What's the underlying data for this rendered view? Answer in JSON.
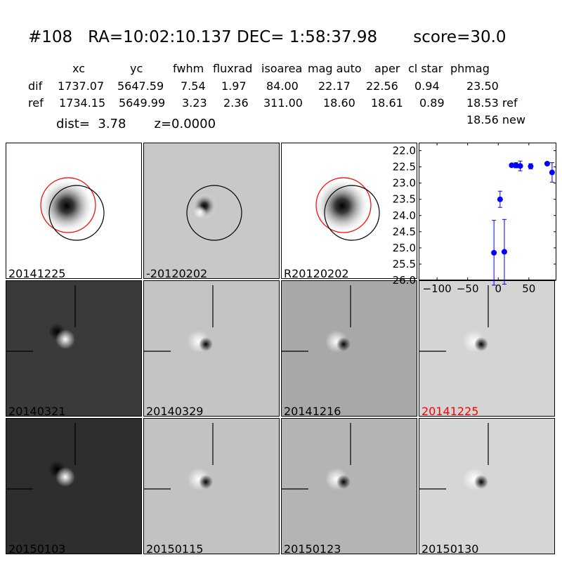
{
  "header": {
    "title": "#108   RA=10:02:10.137 DEC= 1:58:37.98       score=30.0",
    "columns": [
      "xc",
      "yc",
      "fwhm",
      "fluxrad",
      "isoarea",
      "mag auto",
      "aper",
      "cl star",
      "phmag"
    ],
    "rows": [
      {
        "label": "dif",
        "values": [
          "1737.07",
          "5647.59",
          "7.54",
          "1.97",
          "84.00",
          "22.17",
          "22.56",
          "0.94",
          "23.50"
        ]
      },
      {
        "label": "ref",
        "values": [
          "1734.15",
          "5649.99",
          "3.23",
          "2.36",
          "311.00",
          "18.60",
          "18.61",
          "0.89",
          "18.53 ref"
        ]
      }
    ],
    "extra_phmag": "18.56 new",
    "dist_text": "dist=  3.78       z=0.0000"
  },
  "panels": [
    {
      "label": "20141225",
      "label_color": "#000000",
      "bg": "#ffffff",
      "type": "ref-circles"
    },
    {
      "label": "-20120202",
      "label_color": "#000000",
      "bg": "#c8c8c8",
      "type": "dif-circle"
    },
    {
      "label": "R20120202",
      "label_color": "#000000",
      "bg": "#ffffff",
      "type": "ref-circles"
    },
    {
      "label": "20140321",
      "label_color": "#000000",
      "bg": "#3a3a3a",
      "type": "dark"
    },
    {
      "label": "20140329",
      "label_color": "#000000",
      "bg": "#c4c4c4",
      "type": "dipole"
    },
    {
      "label": "20141216",
      "label_color": "#000000",
      "bg": "#a8a8a8",
      "type": "dipole"
    },
    {
      "label": "20141225",
      "label_color": "#ff0000",
      "bg": "#d4d4d4",
      "type": "dipole"
    },
    {
      "label": "20150103",
      "label_color": "#000000",
      "bg": "#2e2e2e",
      "type": "dark"
    },
    {
      "label": "20150115",
      "label_color": "#000000",
      "bg": "#c2c2c2",
      "type": "dipole"
    },
    {
      "label": "20150123",
      "label_color": "#000000",
      "bg": "#b4b4b4",
      "type": "dipole"
    },
    {
      "label": "20150130",
      "label_color": "#000000",
      "bg": "#d6d6d6",
      "type": "dipole"
    }
  ],
  "chart_data": {
    "type": "scatter",
    "x_ticks": [
      "-100",
      "-50",
      "0",
      "50"
    ],
    "y_ticks": [
      "22.0",
      "22.5",
      "23.0",
      "23.5",
      "24.0",
      "24.5",
      "25.0",
      "25.5",
      "26.0"
    ],
    "xlim": [
      -130,
      95
    ],
    "ylim": [
      26.0,
      21.75
    ],
    "y_inverted": true,
    "marker_color": "#0000ff",
    "points": [
      {
        "x": -7,
        "y": 25.15,
        "err": 1.0
      },
      {
        "x": 3,
        "y": 23.5,
        "err": 0.25
      },
      {
        "x": 10,
        "y": 25.12,
        "err": 1.0
      },
      {
        "x": 22,
        "y": 22.45,
        "err": 0.05
      },
      {
        "x": 29,
        "y": 22.45,
        "err": 0.08
      },
      {
        "x": 36,
        "y": 22.47,
        "err": 0.15
      },
      {
        "x": 53,
        "y": 22.48,
        "err": 0.08
      },
      {
        "x": 80,
        "y": 22.4,
        "err": 0.05
      },
      {
        "x": 88,
        "y": 22.67,
        "err": 0.3
      }
    ]
  }
}
